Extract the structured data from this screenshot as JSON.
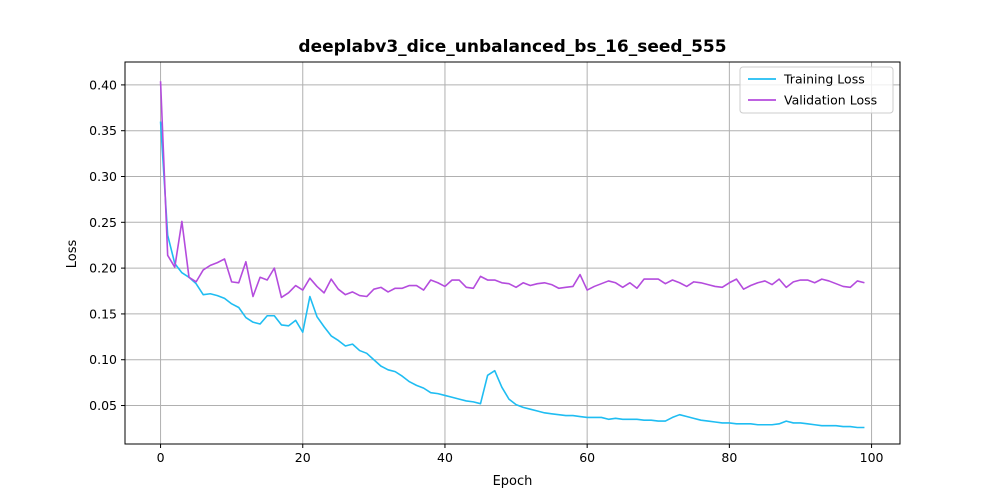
{
  "chart_data": {
    "type": "line",
    "title": "deeplabv3_dice_unbalanced_bs_16_seed_555",
    "xlabel": "Epoch",
    "ylabel": "Loss",
    "xlim": [
      -5,
      104
    ],
    "ylim": [
      0.008,
      0.425
    ],
    "xticks": [
      0,
      20,
      40,
      60,
      80,
      100
    ],
    "yticks": [
      0.05,
      0.1,
      0.15,
      0.2,
      0.25,
      0.3,
      0.35,
      0.4
    ],
    "ytick_labels": [
      "0.05",
      "0.10",
      "0.15",
      "0.20",
      "0.25",
      "0.30",
      "0.35",
      "0.40"
    ],
    "grid": true,
    "legend_position": "top-right",
    "series": [
      {
        "name": "Training Loss",
        "color": "#1fbdf2",
        "values": [
          0.36,
          0.236,
          0.205,
          0.195,
          0.19,
          0.183,
          0.171,
          0.172,
          0.17,
          0.167,
          0.161,
          0.157,
          0.146,
          0.141,
          0.139,
          0.148,
          0.148,
          0.138,
          0.137,
          0.143,
          0.13,
          0.169,
          0.147,
          0.136,
          0.126,
          0.121,
          0.115,
          0.117,
          0.11,
          0.107,
          0.1,
          0.093,
          0.089,
          0.087,
          0.082,
          0.076,
          0.072,
          0.069,
          0.064,
          0.063,
          0.061,
          0.059,
          0.057,
          0.055,
          0.054,
          0.052,
          0.083,
          0.088,
          0.07,
          0.057,
          0.051,
          0.048,
          0.046,
          0.044,
          0.042,
          0.041,
          0.04,
          0.039,
          0.039,
          0.038,
          0.037,
          0.037,
          0.037,
          0.035,
          0.036,
          0.035,
          0.035,
          0.035,
          0.034,
          0.034,
          0.033,
          0.033,
          0.037,
          0.04,
          0.038,
          0.036,
          0.034,
          0.033,
          0.032,
          0.031,
          0.031,
          0.03,
          0.03,
          0.03,
          0.029,
          0.029,
          0.029,
          0.03,
          0.033,
          0.031,
          0.031,
          0.03,
          0.029,
          0.028,
          0.028,
          0.028,
          0.027,
          0.027,
          0.026,
          0.026
        ]
      },
      {
        "name": "Validation Loss",
        "color": "#b44cdd",
        "values": [
          0.404,
          0.214,
          0.201,
          0.251,
          0.19,
          0.185,
          0.198,
          0.203,
          0.206,
          0.21,
          0.185,
          0.184,
          0.207,
          0.169,
          0.19,
          0.187,
          0.2,
          0.168,
          0.173,
          0.181,
          0.176,
          0.189,
          0.18,
          0.173,
          0.188,
          0.177,
          0.171,
          0.174,
          0.17,
          0.169,
          0.177,
          0.179,
          0.174,
          0.178,
          0.178,
          0.181,
          0.181,
          0.176,
          0.187,
          0.184,
          0.18,
          0.187,
          0.187,
          0.179,
          0.178,
          0.191,
          0.187,
          0.187,
          0.184,
          0.183,
          0.179,
          0.184,
          0.181,
          0.183,
          0.184,
          0.182,
          0.178,
          0.179,
          0.18,
          0.193,
          0.176,
          0.18,
          0.183,
          0.186,
          0.184,
          0.179,
          0.184,
          0.178,
          0.188,
          0.188,
          0.188,
          0.183,
          0.187,
          0.184,
          0.18,
          0.185,
          0.184,
          0.182,
          0.18,
          0.179,
          0.184,
          0.188,
          0.177,
          0.181,
          0.184,
          0.186,
          0.182,
          0.188,
          0.179,
          0.185,
          0.187,
          0.187,
          0.184,
          0.188,
          0.186,
          0.183,
          0.18,
          0.179,
          0.186,
          0.184
        ]
      }
    ]
  }
}
